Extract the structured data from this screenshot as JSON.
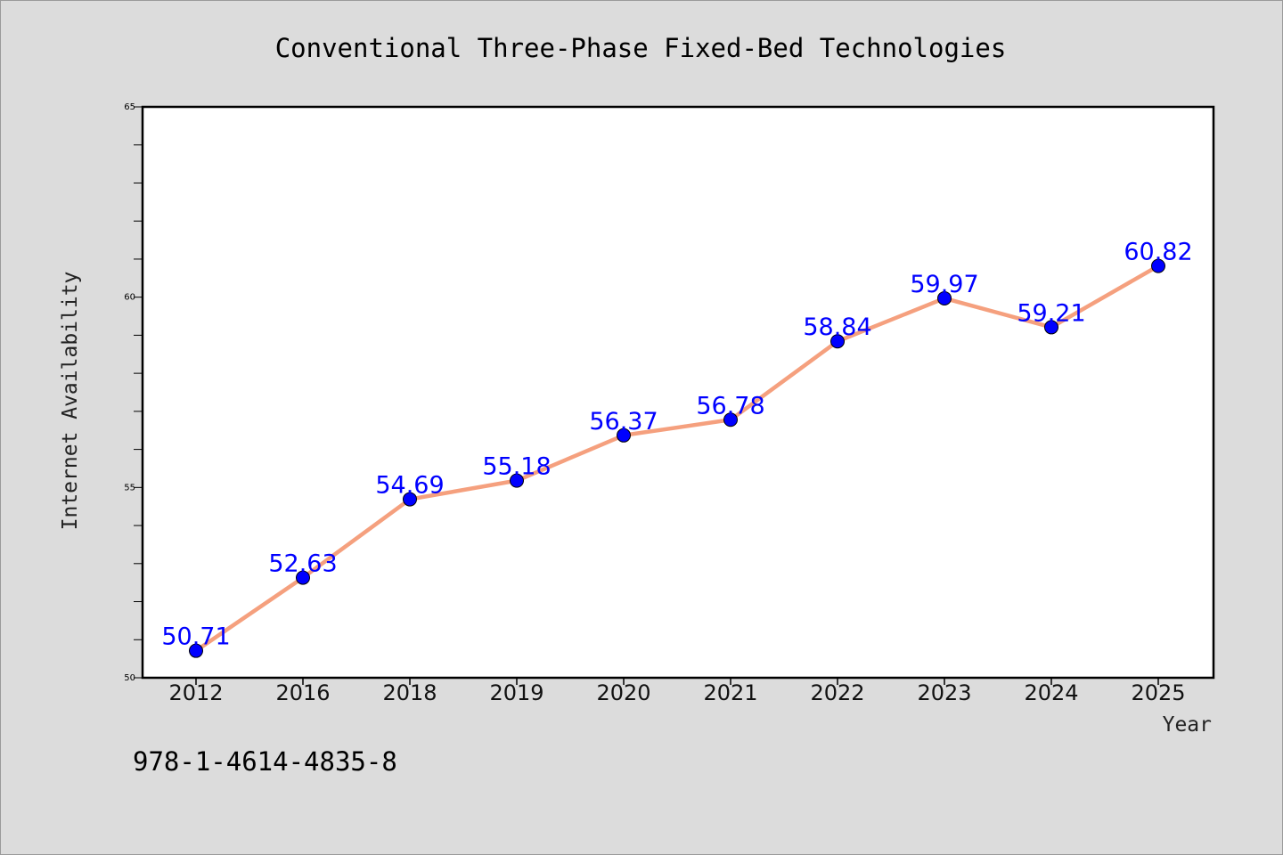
{
  "chart_data": {
    "type": "line",
    "title": "Conventional Three-Phase Fixed-Bed Technologies",
    "xlabel": "Year",
    "ylabel": "Internet Availability",
    "categories": [
      "2012",
      "2016",
      "2018",
      "2019",
      "2020",
      "2021",
      "2022",
      "2023",
      "2024",
      "2025"
    ],
    "values": [
      50.71,
      52.63,
      54.69,
      55.18,
      56.37,
      56.78,
      58.84,
      59.97,
      59.21,
      60.82
    ],
    "value_labels": [
      "50.71",
      "52.63",
      "54.69",
      "55.18",
      "56.37",
      "56.78",
      "58.84",
      "59.97",
      "59.21",
      "60.82"
    ],
    "ylim": [
      50,
      65
    ],
    "y_tick_labels": [
      "50",
      "55",
      "60",
      "65"
    ],
    "y_minor_step": 1,
    "grid": false,
    "legend": "none",
    "colors": {
      "line": "#f5a07e",
      "marker": "#0000ff",
      "data_label": "#0000ff",
      "figure_background": "#dcdcdc",
      "plot_background": "#ffffff"
    }
  },
  "annotation": {
    "isbn": "978-1-4614-4835-8"
  }
}
